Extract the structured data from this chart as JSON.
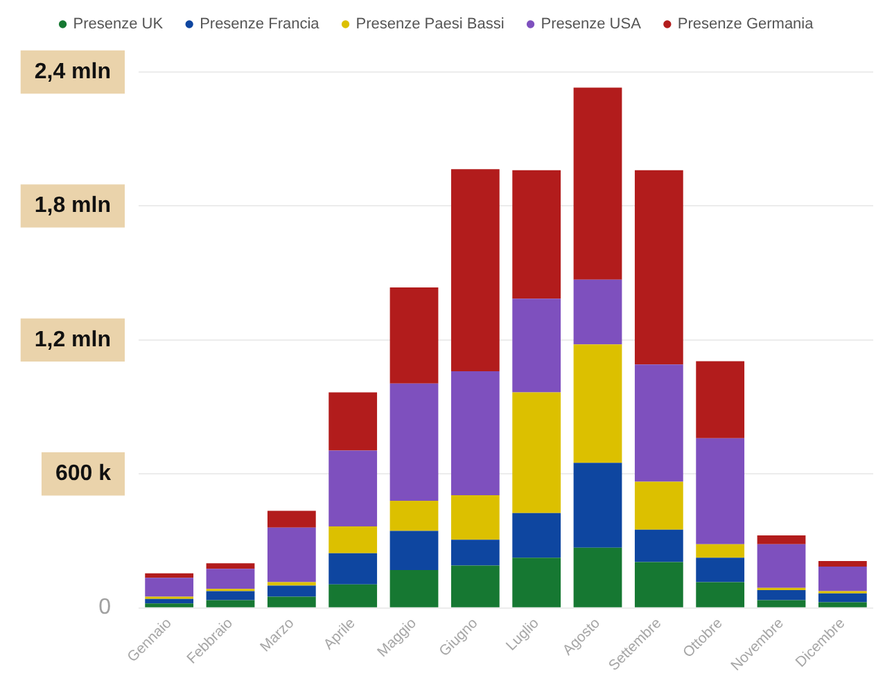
{
  "chart_data": {
    "type": "bar",
    "stacked": true,
    "categories": [
      "Gennaio",
      "Febbraio",
      "Marzo",
      "Aprile",
      "Maggio",
      "Giugno",
      "Luglio",
      "Agosto",
      "Settembre",
      "Ottobre",
      "Novembre",
      "Dicembre"
    ],
    "series": [
      {
        "name": "Presenze UK",
        "color": "#167832",
        "values": [
          0.02,
          0.035,
          0.05,
          0.105,
          0.17,
          0.19,
          0.225,
          0.27,
          0.205,
          0.115,
          0.035,
          0.025
        ]
      },
      {
        "name": "Presenze Francia",
        "color": "#0e46a0",
        "values": [
          0.02,
          0.04,
          0.05,
          0.14,
          0.175,
          0.115,
          0.2,
          0.38,
          0.145,
          0.11,
          0.045,
          0.04
        ]
      },
      {
        "name": "Presenze Paesi Bassi",
        "color": "#dcc000",
        "values": [
          0.01,
          0.01,
          0.015,
          0.12,
          0.135,
          0.2,
          0.54,
          0.53,
          0.215,
          0.06,
          0.01,
          0.01
        ]
      },
      {
        "name": "Presenze USA",
        "color": "#7e50be",
        "values": [
          0.085,
          0.09,
          0.245,
          0.34,
          0.525,
          0.555,
          0.42,
          0.29,
          0.525,
          0.475,
          0.195,
          0.11
        ]
      },
      {
        "name": "Presenze Germania",
        "color": "#b21c1c",
        "values": [
          0.02,
          0.025,
          0.075,
          0.26,
          0.43,
          0.905,
          0.575,
          0.86,
          0.87,
          0.345,
          0.04,
          0.025
        ]
      }
    ],
    "ylim": [
      0,
      2.4
    ],
    "yticks": [
      0,
      {
        "value": 0.6,
        "label": "600 k"
      },
      {
        "value": 1.2,
        "label": "1,2 mln"
      },
      {
        "value": 1.8,
        "label": "1,8 mln"
      },
      {
        "value": 2.4,
        "label": "2,4 mln"
      }
    ],
    "grid": "y",
    "legend": "top"
  }
}
